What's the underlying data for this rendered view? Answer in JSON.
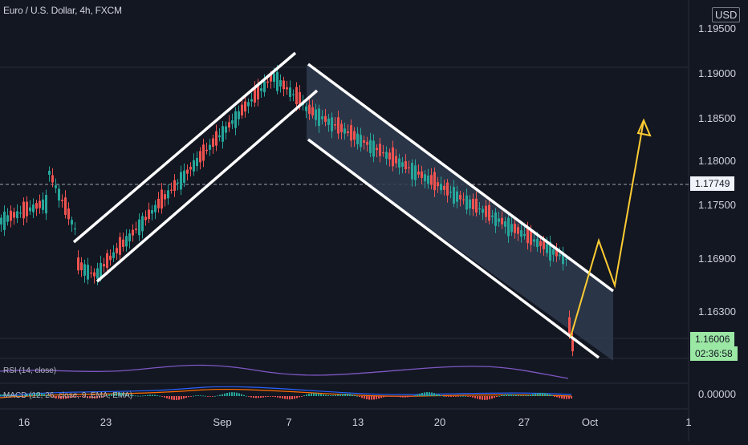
{
  "chart_data": {
    "type": "candlestick",
    "title": "Euro / U.S. Dollar, 4h, FXCM",
    "currency": "USD",
    "price_axis_ticks": [
      "1.19500",
      "1.19000",
      "1.18500",
      "1.18000",
      "1.17500",
      "1.16900",
      "1.16300",
      "0.00000"
    ],
    "time_axis_ticks": [
      "16",
      "23",
      "Sep",
      "7",
      "13",
      "20",
      "27",
      "Oct",
      "1"
    ],
    "highlight_prices": {
      "dashed_level": "1.17749",
      "last_price": "1.16006",
      "countdown": "02:36:58"
    },
    "indicators": {
      "rsi_label": "RSI (14, close)",
      "macd_label": "MACD (12, 26, close, 9, EMA, EMA)"
    },
    "annotations": {
      "ascending_channel": "white parallel lines",
      "descending_channel": "shaded white parallel lines",
      "projection": "yellow arrow path ending upward"
    },
    "colors": {
      "up": "#26a69a",
      "down": "#ef5350",
      "yellow": "#ffcc33",
      "grid": "#2a2e39",
      "bg": "#131722"
    }
  }
}
